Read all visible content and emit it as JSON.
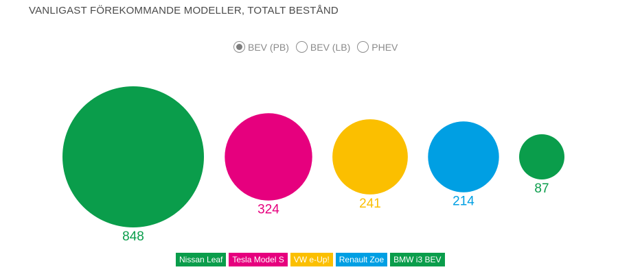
{
  "title": "VANLIGAST FÖREKOMMANDE MODELLER, TOTALT BESTÅND",
  "filters": {
    "options": [
      {
        "label": "BEV (PB)",
        "selected": true
      },
      {
        "label": "BEV (LB)",
        "selected": false
      },
      {
        "label": "PHEV",
        "selected": false
      }
    ]
  },
  "chart_data": {
    "type": "bubble",
    "title": "VANLIGAST FÖREKOMMANDE MODELLER, TOTALT BESTÅND",
    "categories": [
      "Nissan Leaf",
      "Tesla Model S",
      "VW e-Up!",
      "Renault Zoe",
      "BMW i3 BEV"
    ],
    "values": [
      848,
      324,
      241,
      214,
      87
    ],
    "colors": [
      "#0a9d4b",
      "#e6007e",
      "#fbbf00",
      "#009fe3",
      "#0a9d4b"
    ],
    "legend_placement": "bottom"
  },
  "legend": {
    "items": [
      {
        "label": "Nissan Leaf",
        "color": "#0a9d4b"
      },
      {
        "label": "Tesla Model S",
        "color": "#e6007e"
      },
      {
        "label": "VW e-Up!",
        "color": "#fbbf00"
      },
      {
        "label": "Renault Zoe",
        "color": "#009fe3"
      },
      {
        "label": "BMW i3 BEV",
        "color": "#0a9d4b"
      }
    ]
  }
}
